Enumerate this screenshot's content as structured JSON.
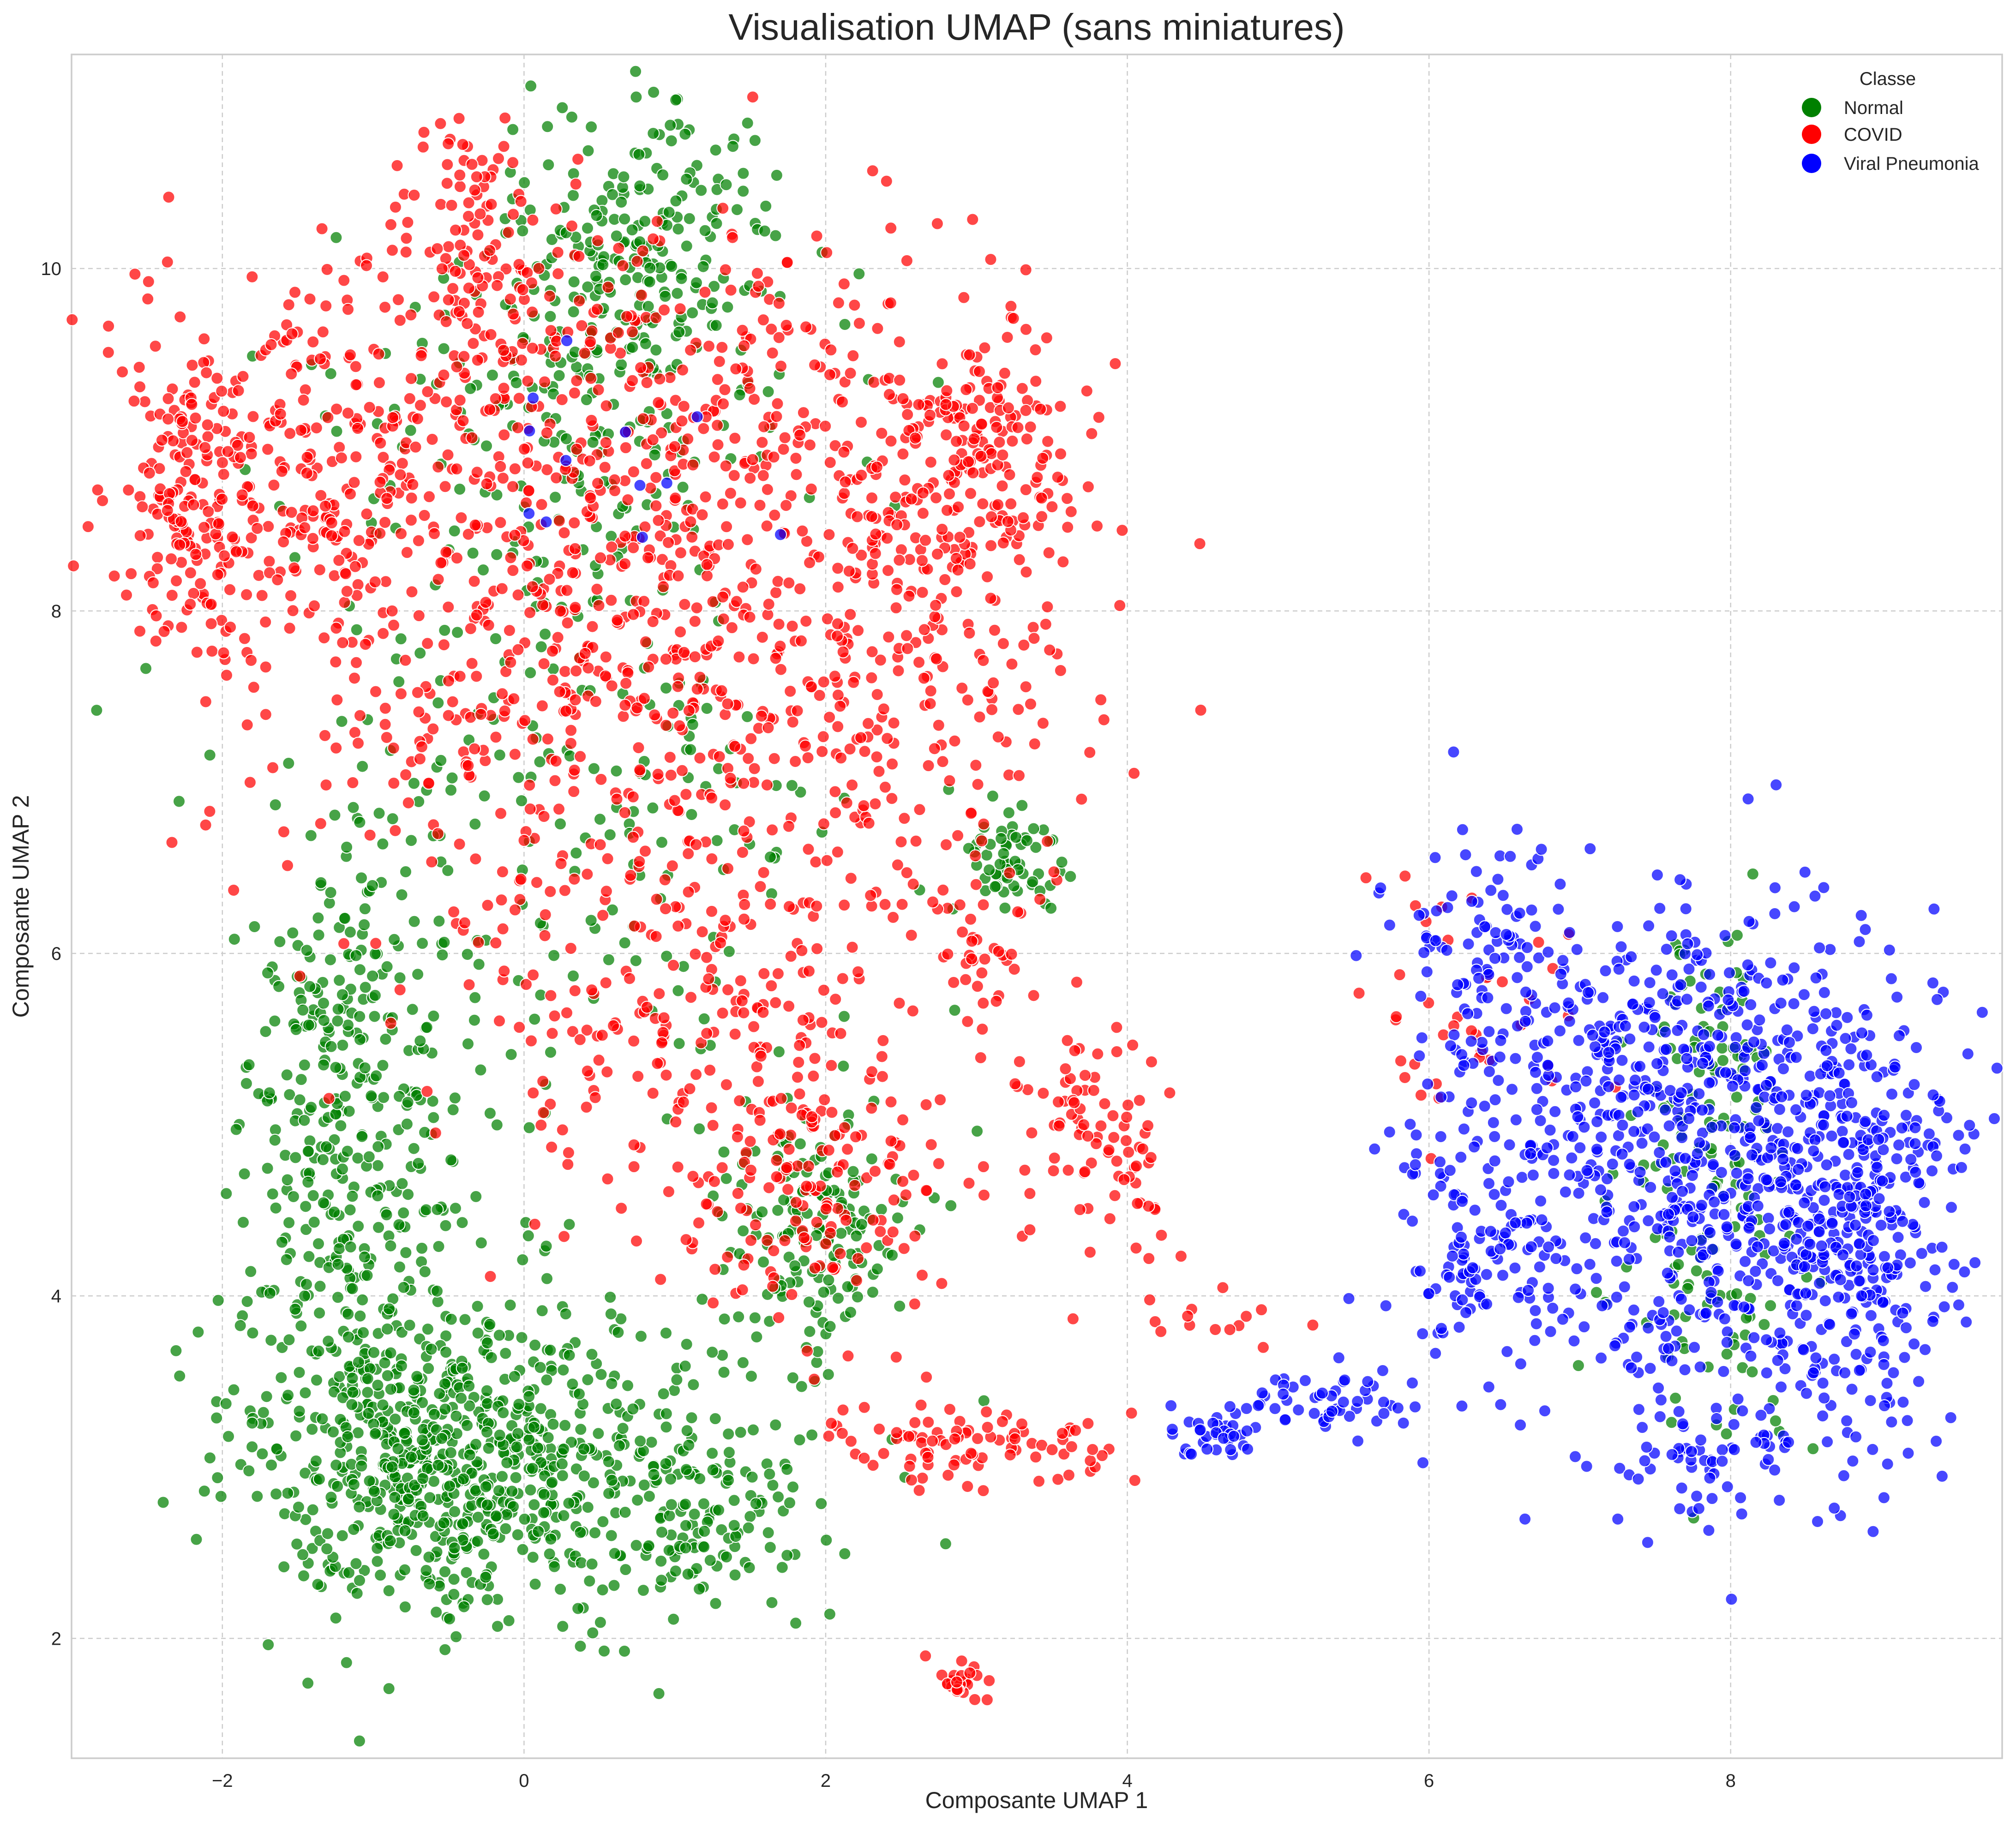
{
  "chart_data": {
    "type": "scatter",
    "title": "Visualisation UMAP (sans miniatures)",
    "xlabel": "Composante UMAP 1",
    "ylabel": "Composante UMAP 2",
    "xlim": [
      -3.0,
      9.8
    ],
    "ylim": [
      1.3,
      11.25
    ],
    "x_ticks": [
      "−2",
      "0",
      "2",
      "4",
      "6",
      "8"
    ],
    "y_ticks": [
      "2",
      "4",
      "6",
      "8",
      "10"
    ],
    "grid": true,
    "point_opacity": 0.72,
    "legend": {
      "title": "Classe",
      "position": "top-right",
      "entries": [
        {
          "label": "Normal",
          "color": "#008000"
        },
        {
          "label": "COVID",
          "color": "#ff0000"
        },
        {
          "label": "Viral Pneumonia",
          "color": "#0000ff"
        }
      ]
    },
    "series": [
      {
        "name": "Normal",
        "color": "#008000",
        "clusters": [
          {
            "cx": 0.15,
            "cy": 3.0,
            "sx": 0.9,
            "sy": 0.5,
            "n": 520
          },
          {
            "cx": -1.0,
            "cy": 3.7,
            "sx": 0.45,
            "sy": 0.7,
            "n": 340
          },
          {
            "cx": -1.2,
            "cy": 5.4,
            "sx": 0.35,
            "sy": 0.6,
            "n": 200
          },
          {
            "cx": -0.6,
            "cy": 3.0,
            "sx": 0.35,
            "sy": 0.3,
            "n": 150
          },
          {
            "cx": 0.8,
            "cy": 10.1,
            "sx": 0.45,
            "sy": 0.45,
            "n": 200
          },
          {
            "cx": 0.3,
            "cy": 9.1,
            "sx": 0.8,
            "sy": 0.6,
            "n": 200
          },
          {
            "cx": 1.9,
            "cy": 4.4,
            "sx": 0.35,
            "sy": 0.4,
            "n": 160
          },
          {
            "cx": 3.2,
            "cy": 6.55,
            "sx": 0.18,
            "sy": 0.18,
            "n": 60
          },
          {
            "cx": 0.2,
            "cy": 6.6,
            "sx": 1.0,
            "sy": 0.8,
            "n": 170
          },
          {
            "cx": 7.85,
            "cy": 5.3,
            "sx": 0.3,
            "sy": 0.45,
            "n": 80
          },
          {
            "cx": 7.9,
            "cy": 4.0,
            "sx": 0.3,
            "sy": 0.4,
            "n": 70
          },
          {
            "cx": 1.3,
            "cy": 2.7,
            "sx": 0.3,
            "sy": 0.2,
            "n": 40
          }
        ]
      },
      {
        "name": "COVID",
        "color": "#ff0000",
        "clusters": [
          {
            "cx": 0.7,
            "cy": 7.8,
            "sx": 1.2,
            "sy": 0.9,
            "n": 650
          },
          {
            "cx": 0.0,
            "cy": 9.2,
            "sx": 1.2,
            "sy": 0.6,
            "n": 380
          },
          {
            "cx": -1.7,
            "cy": 8.7,
            "sx": 0.6,
            "sy": 0.5,
            "n": 200
          },
          {
            "cx": 2.6,
            "cy": 8.7,
            "sx": 0.6,
            "sy": 0.6,
            "n": 200
          },
          {
            "cx": 3.1,
            "cy": 9.0,
            "sx": 0.25,
            "sy": 0.3,
            "n": 100
          },
          {
            "cx": -2.2,
            "cy": 8.7,
            "sx": 0.15,
            "sy": 0.4,
            "n": 80
          },
          {
            "cx": -0.3,
            "cy": 10.3,
            "sx": 0.25,
            "sy": 0.3,
            "n": 80
          },
          {
            "cx": 1.2,
            "cy": 5.6,
            "sx": 0.9,
            "sy": 0.6,
            "n": 220
          },
          {
            "cx": 1.9,
            "cy": 4.6,
            "sx": 0.45,
            "sy": 0.4,
            "n": 140
          },
          {
            "cx": 2.5,
            "cy": 7.0,
            "sx": 0.5,
            "sy": 0.5,
            "n": 80
          },
          {
            "cx": 3.0,
            "cy": 3.15,
            "sx": 0.5,
            "sy": 0.12,
            "n": 90
          },
          {
            "cx": 3.7,
            "cy": 5.1,
            "sx": 0.25,
            "sy": 0.3,
            "n": 70
          },
          {
            "cx": 4.1,
            "cy": 4.6,
            "sx": 0.15,
            "sy": 0.2,
            "n": 20
          },
          {
            "cx": 2.9,
            "cy": 1.75,
            "sx": 0.08,
            "sy": 0.06,
            "n": 25
          },
          {
            "cx": 3.05,
            "cy": 6.0,
            "sx": 0.12,
            "sy": 0.15,
            "n": 25
          },
          {
            "cx": 6.3,
            "cy": 5.6,
            "sx": 0.4,
            "sy": 0.5,
            "n": 40
          },
          {
            "cx": 4.5,
            "cy": 3.8,
            "sx": 0.3,
            "sy": 0.1,
            "n": 15
          }
        ]
      },
      {
        "name": "Viral Pneumonia",
        "color": "#0000ff",
        "clusters": [
          {
            "cx": 8.2,
            "cy": 4.6,
            "sx": 0.6,
            "sy": 0.8,
            "n": 650
          },
          {
            "cx": 8.9,
            "cy": 4.4,
            "sx": 0.35,
            "sy": 0.6,
            "n": 200
          },
          {
            "cx": 7.2,
            "cy": 5.3,
            "sx": 0.5,
            "sy": 0.5,
            "n": 200
          },
          {
            "cx": 6.4,
            "cy": 4.3,
            "sx": 0.35,
            "sy": 0.4,
            "n": 150
          },
          {
            "cx": 6.3,
            "cy": 5.9,
            "sx": 0.3,
            "sy": 0.4,
            "n": 100
          },
          {
            "cx": 7.7,
            "cy": 3.0,
            "sx": 0.25,
            "sy": 0.2,
            "n": 40
          },
          {
            "cx": 5.3,
            "cy": 3.4,
            "sx": 0.4,
            "sy": 0.1,
            "n": 60
          },
          {
            "cx": 4.6,
            "cy": 3.15,
            "sx": 0.2,
            "sy": 0.06,
            "n": 30
          },
          {
            "cx": 0.7,
            "cy": 8.9,
            "sx": 0.6,
            "sy": 0.4,
            "n": 12
          }
        ]
      }
    ]
  }
}
